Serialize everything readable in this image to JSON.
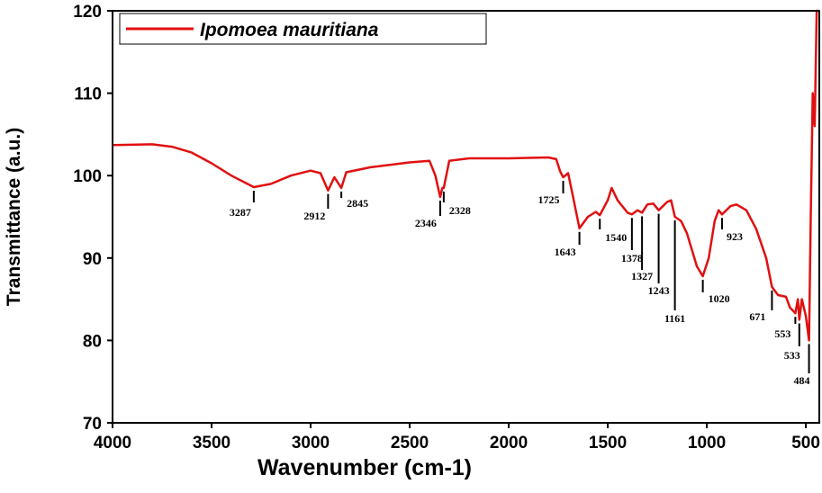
{
  "chart_data": {
    "type": "line",
    "x_label": "Wavenumber (cm-1)",
    "y_label": "Transmittance (a.u.)",
    "xlim": [
      4000,
      432
    ],
    "ylim": [
      70,
      120
    ],
    "xticks": [
      4000,
      3500,
      3000,
      2500,
      2000,
      1500,
      1000,
      500
    ],
    "yticks": [
      70,
      80,
      90,
      100,
      110,
      120
    ],
    "legend": "top-left",
    "series": [
      {
        "name": "Ipomoea mauritiana",
        "color": "#e01010",
        "x": [
          4000,
          3800,
          3700,
          3600,
          3500,
          3400,
          3287,
          3200,
          3100,
          3000,
          2950,
          2912,
          2880,
          2845,
          2820,
          2700,
          2500,
          2400,
          2370,
          2346,
          2335,
          2328,
          2300,
          2200,
          2000,
          1800,
          1760,
          1740,
          1725,
          1700,
          1680,
          1643,
          1600,
          1560,
          1540,
          1500,
          1480,
          1450,
          1400,
          1378,
          1350,
          1327,
          1300,
          1270,
          1243,
          1200,
          1180,
          1161,
          1130,
          1100,
          1050,
          1020,
          990,
          960,
          940,
          923,
          880,
          850,
          800,
          750,
          700,
          671,
          640,
          600,
          580,
          553,
          540,
          533,
          520,
          500,
          484,
          475,
          465,
          455,
          445,
          435
        ],
        "values": [
          103.7,
          103.8,
          103.5,
          102.8,
          101.5,
          100,
          98.6,
          99,
          100,
          100.6,
          100.3,
          98.2,
          99.8,
          98.5,
          100.4,
          101,
          101.6,
          101.8,
          100,
          97.4,
          98.5,
          98.5,
          101.8,
          102.1,
          102.1,
          102.2,
          102,
          100.5,
          99.8,
          100.3,
          98,
          93.6,
          95,
          95.6,
          95.2,
          97,
          98.5,
          97,
          95.5,
          95.3,
          95.8,
          95.5,
          96.5,
          96.6,
          95.8,
          96.8,
          97,
          95,
          94.5,
          93,
          89,
          87.8,
          90,
          94.5,
          95.8,
          95.3,
          96.3,
          96.5,
          95.8,
          93.5,
          90,
          86.5,
          85.5,
          85.3,
          84,
          83.3,
          85,
          82.5,
          85,
          83,
          80,
          95,
          110,
          106,
          120,
          120
        ]
      }
    ],
    "peaks": [
      3287,
      2912,
      2845,
      2346,
      2328,
      1725,
      1643,
      1540,
      1378,
      1327,
      1243,
      1161,
      1020,
      923,
      671,
      553,
      533,
      484
    ]
  }
}
